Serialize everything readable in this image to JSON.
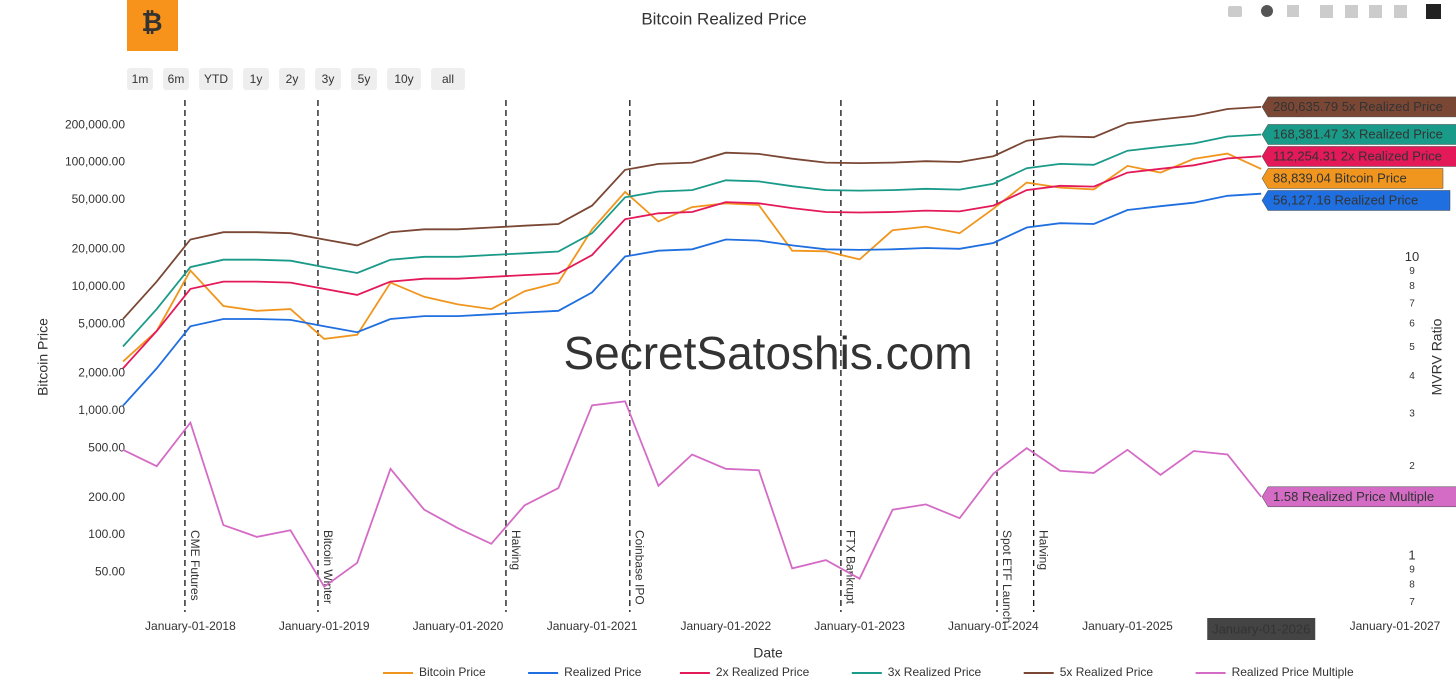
{
  "chart_data": {
    "type": "line",
    "title": "Bitcoin Realized Price",
    "range_buttons": [
      "1m",
      "6m",
      "YTD",
      "1y",
      "2y",
      "3y",
      "5y",
      "10y",
      "all"
    ],
    "watermark": "SecretSatoshis.com",
    "x_label": "Date",
    "y_label": "Bitcoin Price",
    "y2_label": "MVRV Ratio",
    "y_log": true,
    "y2_log": true,
    "grid": false,
    "hover_label": "January-01-2026",
    "x": [
      "2017-07-01",
      "2017-10-01",
      "2018-01-01",
      "2018-04-01",
      "2018-07-01",
      "2018-10-01",
      "2019-01-01",
      "2019-04-01",
      "2019-07-01",
      "2019-10-01",
      "2020-01-01",
      "2020-04-01",
      "2020-07-01",
      "2020-10-01",
      "2021-01-01",
      "2021-04-01",
      "2021-07-01",
      "2021-10-01",
      "2022-01-01",
      "2022-04-01",
      "2022-07-01",
      "2022-10-01",
      "2023-01-01",
      "2023-04-01",
      "2023-07-01",
      "2023-10-01",
      "2024-01-01",
      "2024-04-01",
      "2024-07-01",
      "2024-10-01",
      "2025-01-01",
      "2025-04-01",
      "2025-07-01",
      "2025-10-01",
      "2026-01-01"
    ],
    "xlim": [
      "2017-07-01",
      "2027-01-01"
    ],
    "xticks": [
      {
        "value": "2018-01-01",
        "label": "January-01-2018"
      },
      {
        "value": "2019-01-01",
        "label": "January-01-2019"
      },
      {
        "value": "2020-01-01",
        "label": "January-01-2020"
      },
      {
        "value": "2021-01-01",
        "label": "January-01-2021"
      },
      {
        "value": "2022-01-01",
        "label": "January-01-2022"
      },
      {
        "value": "2023-01-01",
        "label": "January-01-2023"
      },
      {
        "value": "2024-01-01",
        "label": "January-01-2024"
      },
      {
        "value": "2025-01-01",
        "label": "January-01-2025"
      },
      {
        "value": "2026-01-01",
        "label": "January-01-2026"
      },
      {
        "value": "2027-01-01",
        "label": "January-01-2027"
      }
    ],
    "ylim": [
      24,
      350000
    ],
    "yticks": [
      {
        "value": 50,
        "label": "50.00"
      },
      {
        "value": 100,
        "label": "100.00"
      },
      {
        "value": 200,
        "label": "200.00"
      },
      {
        "value": 500,
        "label": "500.00"
      },
      {
        "value": 1000,
        "label": "1,000.00"
      },
      {
        "value": 2000,
        "label": "2,000.00"
      },
      {
        "value": 5000,
        "label": "5,000.00"
      },
      {
        "value": 10000,
        "label": "10,000.00"
      },
      {
        "value": 20000,
        "label": "20,000.00"
      },
      {
        "value": 50000,
        "label": "50,000.00"
      },
      {
        "value": 100000,
        "label": "100,000.00"
      },
      {
        "value": 200000,
        "label": "200,000.00"
      }
    ],
    "y2lim": [
      0.65,
      35
    ],
    "y2ticks": [
      {
        "value": 0.7,
        "label": "7"
      },
      {
        "value": 0.8,
        "label": "8"
      },
      {
        "value": 0.9,
        "label": "9"
      },
      1,
      2,
      3,
      4,
      5,
      6,
      7,
      8,
      9,
      10
    ],
    "series": [
      {
        "name": "Bitcoin Price",
        "color": "#f0961e",
        "end_label": "88,839.04",
        "values": [
          2500,
          4400,
          13500,
          7000,
          6400,
          6600,
          3800,
          4100,
          10800,
          8300,
          7200,
          6600,
          9200,
          10800,
          29000,
          58000,
          33500,
          43800,
          47000,
          45500,
          19500,
          19300,
          16600,
          28500,
          30500,
          27000,
          42500,
          69000,
          62800,
          60800,
          94000,
          83000,
          107000,
          118000,
          88839.04
        ]
      },
      {
        "name": "Realized Price",
        "color": "#1f6fe0",
        "end_label": "56,127.16",
        "values": [
          1100,
          2200,
          4800,
          5500,
          5500,
          5400,
          4800,
          4300,
          5500,
          5800,
          5800,
          6000,
          6200,
          6400,
          9000,
          17500,
          19500,
          20000,
          24000,
          23500,
          21500,
          20000,
          19800,
          20000,
          20500,
          20200,
          22500,
          30000,
          32500,
          32000,
          41500,
          44500,
          47500,
          54000,
          56127.16
        ]
      },
      {
        "name": "2x Realized Price",
        "color": "#e3195a",
        "end_label": "112,254.31",
        "values": [
          2200,
          4400,
          9600,
          11000,
          11000,
          10800,
          9600,
          8600,
          11000,
          11600,
          11600,
          12000,
          12400,
          12800,
          18000,
          35000,
          39000,
          40000,
          48000,
          47000,
          43000,
          40000,
          39600,
          40000,
          41000,
          40400,
          45000,
          60000,
          65000,
          64000,
          83000,
          89000,
          95000,
          108000,
          112254.31
        ]
      },
      {
        "name": "3x Realized Price",
        "color": "#1a9a88",
        "end_label": "168,381.47",
        "values": [
          3300,
          6600,
          14400,
          16500,
          16500,
          16200,
          14400,
          12900,
          16500,
          17400,
          17400,
          18000,
          18600,
          19200,
          27000,
          52500,
          58500,
          60000,
          72000,
          70500,
          64500,
          60000,
          59400,
          60000,
          61500,
          60600,
          67500,
          90000,
          97500,
          96000,
          124500,
          133500,
          142500,
          162000,
          168381.47
        ]
      },
      {
        "name": "5x Realized Price",
        "color": "#7a4734",
        "end_label": "280,635.79",
        "values": [
          5500,
          11000,
          24000,
          27500,
          27500,
          27000,
          24000,
          21500,
          27500,
          29000,
          29000,
          30000,
          31000,
          32000,
          45000,
          87500,
          97500,
          100000,
          120000,
          117500,
          107500,
          100000,
          99000,
          100000,
          102500,
          101000,
          112500,
          150000,
          162500,
          160000,
          207500,
          222500,
          237500,
          270000,
          280635.79
        ]
      },
      {
        "name": "Realized Price Multiple",
        "color": "#d46cc6",
        "axis": "y2",
        "end_label": "1.58",
        "values": [
          2.27,
          2.0,
          2.8,
          1.27,
          1.16,
          1.22,
          0.79,
          0.95,
          1.96,
          1.43,
          1.24,
          1.1,
          1.48,
          1.69,
          3.2,
          3.3,
          1.72,
          2.19,
          1.96,
          1.94,
          0.91,
          0.97,
          0.84,
          1.43,
          1.49,
          1.34,
          1.89,
          2.3,
          1.93,
          1.9,
          2.27,
          1.87,
          2.25,
          2.19,
          1.58
        ]
      }
    ],
    "annotations": [
      {
        "x": "2017-12-17",
        "text": "CME Futures"
      },
      {
        "x": "2018-12-15",
        "text": "Bitcoin Winter"
      },
      {
        "x": "2020-05-11",
        "text": "Halving"
      },
      {
        "x": "2021-04-14",
        "text": "Coinbase IPO"
      },
      {
        "x": "2022-11-11",
        "text": "FTX Bankrupt"
      },
      {
        "x": "2024-01-11",
        "text": "Spot ETF Launch"
      },
      {
        "x": "2024-04-20",
        "text": "Halving"
      }
    ]
  }
}
